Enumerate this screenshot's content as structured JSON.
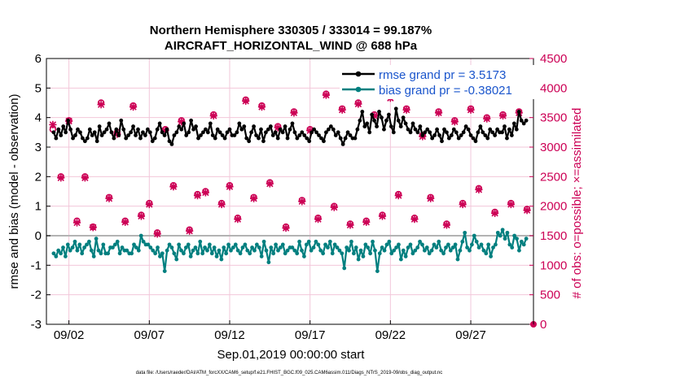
{
  "chart_data": {
    "type": "line",
    "title_line1": "Northern Hemisphere 330305 / 333014 = 99.187%",
    "title_line2": "AIRCRAFT_HORIZONTAL_WIND @ 688 hPa",
    "ylabel_left": "rmse and bias (model - observation)",
    "ylabel_right": "# of obs: o=possible; ×=assimilated",
    "xlabel": "Sep.01,2019 00:00:00 start",
    "footnote": "data file: /Users/raeder/DAI/ATM_forcXX/CAM6_setup/f.e21.FHIST_BGC.f09_025.CAM6assim.011/Diags_NTrS_2019-09/obs_diag_output.nc",
    "ylim_left": [
      -3,
      6
    ],
    "yticks_left": [
      "-3",
      "-2",
      "-1",
      "0",
      "1",
      "2",
      "3",
      "4",
      "5",
      "6"
    ],
    "ylim_right": [
      0,
      4500
    ],
    "yticks_right": [
      "0",
      "500",
      "1000",
      "1500",
      "2000",
      "2500",
      "3000",
      "3500",
      "4000",
      "4500"
    ],
    "xlim": [
      0.6,
      30.9
    ],
    "xticks": [
      {
        "day": 2,
        "label": "09/02"
      },
      {
        "day": 7,
        "label": "09/07"
      },
      {
        "day": 12,
        "label": "09/12"
      },
      {
        "day": 17,
        "label": "09/17"
      },
      {
        "day": 22,
        "label": "09/22"
      },
      {
        "day": 27,
        "label": "09/27"
      }
    ],
    "colors": {
      "rmse": "#000000",
      "bias": "#007f7f",
      "counts": "#cc0055",
      "grid": "#f2c7da",
      "zero": "#b3b3b3"
    },
    "series": [
      {
        "name": "rmse",
        "legend": "rmse grand pr = 3.5173",
        "values": [
          3.5,
          3.3,
          3.6,
          3.4,
          3.7,
          3.5,
          3.9,
          3.6,
          3.3,
          3.4,
          3.6,
          3.5,
          3.3,
          3.2,
          3.3,
          3.6,
          3.4,
          3.5,
          3.2,
          3.7,
          3.4,
          3.5,
          3.6,
          3.8,
          3.5,
          3.3,
          3.6,
          3.4,
          3.9,
          3.6,
          3.3,
          3.4,
          3.5,
          3.7,
          3.4,
          3.6,
          3.3,
          3.5,
          3.4,
          3.6,
          3.5,
          3.2,
          3.3,
          3.6,
          3.8,
          3.5,
          3.4,
          3.6,
          3.2,
          3.1,
          3.4,
          3.5,
          3.7,
          3.6,
          3.8,
          3.4,
          3.5,
          3.9,
          3.6,
          3.7,
          3.3,
          3.4,
          3.5,
          3.6,
          3.5,
          3.8,
          3.4,
          3.3,
          3.6,
          3.5,
          3.4,
          3.3,
          3.5,
          3.6,
          3.4,
          3.4,
          3.5,
          3.8,
          3.6,
          3.7,
          3.3,
          3.2,
          3.5,
          3.7,
          3.4,
          3.3,
          3.6,
          3.2,
          3.5,
          3.6,
          3.7,
          3.4,
          3.5,
          3.3,
          3.6,
          3.5,
          3.7,
          3.3,
          3.6,
          3.8,
          3.5,
          3.3,
          3.4,
          3.5,
          3.4,
          3.3,
          3.2,
          3.5,
          3.6,
          3.5,
          3.4,
          3.3,
          3.2,
          3.5,
          3.6,
          3.7,
          3.6,
          3.4,
          3.5,
          3.3,
          3.1,
          3.3,
          3.5,
          3.4,
          3.3,
          3.3,
          3.6,
          3.9,
          4.2,
          3.7,
          3.8,
          3.5,
          4.1,
          3.9,
          3.7,
          4.2,
          4.0,
          3.6,
          3.9,
          4.1,
          3.7,
          3.5,
          4.3,
          3.9,
          3.7,
          4.0,
          3.8,
          3.6,
          3.5,
          3.8,
          3.6,
          3.5,
          3.7,
          3.4,
          3.5,
          3.6,
          3.5,
          3.3,
          3.4,
          3.6,
          3.4,
          3.2,
          3.6,
          3.5,
          3.3,
          3.4,
          3.6,
          3.5,
          3.3,
          3.4,
          3.5,
          3.7,
          3.6,
          3.4,
          3.3,
          3.2,
          3.5,
          3.7,
          3.5,
          3.4,
          3.3,
          3.6,
          3.5,
          3.4,
          3.6,
          3.5,
          3.5,
          3.7,
          3.3,
          3.6,
          3.4,
          3.8,
          3.6,
          4.2,
          3.9,
          3.8,
          3.9
        ]
      },
      {
        "name": "bias",
        "legend": "bias grand pr = -0.38021",
        "values": [
          -0.6,
          -0.7,
          -0.5,
          -0.6,
          -0.4,
          -0.7,
          -0.3,
          -0.5,
          -0.4,
          -0.2,
          -0.5,
          -0.3,
          -0.6,
          -0.4,
          -0.3,
          -0.2,
          -0.5,
          -0.7,
          -0.1,
          -0.5,
          -0.6,
          -0.3,
          -0.6,
          -0.6,
          -0.4,
          -0.4,
          -0.3,
          -0.2,
          -0.6,
          -0.4,
          -0.5,
          -0.5,
          -0.6,
          -0.6,
          -0.3,
          -0.4,
          -0.5,
          0.0,
          -0.2,
          -0.3,
          -0.3,
          -0.4,
          -0.5,
          -0.6,
          -0.4,
          -0.7,
          -0.6,
          -1.2,
          -0.5,
          -0.3,
          -0.4,
          -0.6,
          -0.8,
          -0.3,
          -0.5,
          -0.6,
          -0.4,
          -0.3,
          -0.7,
          -0.5,
          -0.4,
          -0.6,
          -0.2,
          -0.6,
          -0.4,
          -0.5,
          -0.3,
          -0.6,
          -0.4,
          -0.7,
          -0.5,
          -0.8,
          -0.4,
          -0.6,
          -0.3,
          -0.5,
          -0.4,
          -0.3,
          -0.5,
          -0.6,
          -0.4,
          -0.3,
          -0.5,
          -0.6,
          -0.4,
          -0.5,
          -0.3,
          -0.4,
          -0.7,
          -0.2,
          -0.5,
          -0.9,
          -0.4,
          -0.6,
          -0.3,
          -0.5,
          -0.4,
          -0.3,
          -0.6,
          -0.5,
          -0.4,
          -0.4,
          -0.5,
          -0.6,
          -0.2,
          -0.5,
          -0.7,
          -0.3,
          -0.2,
          -0.5,
          -0.4,
          -0.2,
          -0.3,
          -0.5,
          -0.6,
          -0.3,
          -0.4,
          -0.2,
          -0.6,
          -0.3,
          -0.4,
          -0.5,
          -0.6,
          -1.1,
          -0.4,
          -0.5,
          -0.2,
          -0.6,
          -0.4,
          -0.8,
          -0.5,
          -0.7,
          -0.3,
          -0.4,
          -0.6,
          -0.2,
          -0.5,
          -1.2,
          -0.6,
          -0.4,
          -0.5,
          -0.3,
          -0.2,
          -0.6,
          -0.5,
          -0.4,
          -0.3,
          -0.8,
          -0.5,
          -0.7,
          -0.4,
          -0.3,
          -0.6,
          -0.5,
          -0.4,
          -0.2,
          -0.3,
          -0.5,
          -0.4,
          -0.6,
          -0.5,
          -0.3,
          -0.4,
          -0.2,
          -0.5,
          -0.6,
          -0.4,
          -0.3,
          -0.5,
          -0.4,
          -0.3,
          -0.8,
          -0.5,
          -0.2,
          0.1,
          -0.4,
          -0.5,
          -0.3,
          0.0,
          -0.2,
          -0.4,
          -0.3,
          -0.5,
          -0.6,
          -0.3,
          -0.7,
          -0.4,
          -0.3,
          0.1,
          0.0,
          0.2,
          -0.1,
          0.1,
          -0.3,
          -0.4,
          0.0,
          -0.1,
          -0.5,
          -0.2,
          -0.3,
          -0.1
        ]
      },
      {
        "name": "possible",
        "marker": "o",
        "x": [
          1.0,
          1.5,
          2.0,
          2.5,
          3.0,
          3.5,
          4.0,
          4.5,
          5.0,
          5.5,
          6.0,
          6.5,
          7.0,
          7.5,
          8.0,
          8.5,
          9.0,
          9.5,
          10.0,
          10.5,
          11.0,
          11.5,
          12.0,
          12.5,
          13.0,
          13.5,
          14.0,
          14.5,
          15.0,
          15.5,
          16.0,
          16.5,
          17.0,
          17.5,
          18.0,
          18.5,
          19.0,
          19.5,
          20.0,
          20.5,
          21.0,
          21.5,
          22.0,
          22.5,
          23.0,
          23.5,
          24.0,
          24.5,
          25.0,
          25.5,
          26.0,
          26.5,
          27.0,
          27.5,
          28.0,
          28.5,
          29.0,
          29.5,
          30.0,
          30.5
        ],
        "values": [
          3300,
          2500,
          3450,
          1750,
          2500,
          1650,
          3750,
          2150,
          3250,
          1750,
          3700,
          1850,
          2050,
          1550,
          3300,
          2350,
          3450,
          1600,
          2200,
          2250,
          3550,
          2050,
          2350,
          1800,
          3800,
          2150,
          3700,
          2400,
          3350,
          1650,
          3600,
          2100,
          3300,
          1800,
          3900,
          2000,
          3650,
          1700,
          3750,
          1750,
          3550,
          1850,
          3850,
          2200,
          3650,
          1800,
          3200,
          2150,
          3600,
          1700,
          3450,
          2050,
          3650,
          2300,
          3500,
          1900,
          3550,
          2050,
          3600,
          1950
        ]
      },
      {
        "name": "assimilated",
        "marker": "x",
        "x": [
          1.0,
          1.5,
          2.0,
          2.5,
          3.0,
          3.5,
          4.0,
          4.5,
          5.0,
          5.5,
          6.0,
          6.5,
          7.0,
          7.5,
          8.0,
          8.5,
          9.0,
          9.5,
          10.0,
          10.5,
          11.0,
          11.5,
          12.0,
          12.5,
          13.0,
          13.5,
          14.0,
          14.5,
          15.0,
          15.5,
          16.0,
          16.5,
          17.0,
          17.5,
          18.0,
          18.5,
          19.0,
          19.5,
          20.0,
          20.5,
          21.0,
          21.5,
          22.0,
          22.5,
          23.0,
          23.5,
          24.0,
          24.5,
          25.0,
          25.5,
          26.0,
          26.5,
          27.0,
          27.5,
          28.0,
          28.5,
          29.0,
          29.5,
          30.0,
          30.5
        ],
        "values": [
          3380,
          2480,
          3440,
          1720,
          2480,
          1640,
          3720,
          2130,
          3220,
          1730,
          3680,
          1830,
          2030,
          1530,
          3280,
          2330,
          3430,
          1580,
          2180,
          2230,
          3530,
          2030,
          2330,
          1780,
          3780,
          2130,
          3680,
          2380,
          3330,
          1630,
          3580,
          2080,
          3280,
          1780,
          3880,
          1980,
          3630,
          1680,
          3730,
          1730,
          3530,
          1830,
          3830,
          2180,
          3630,
          1780,
          3180,
          2130,
          3580,
          1680,
          3430,
          2030,
          3630,
          2280,
          3480,
          1880,
          3530,
          2030,
          3580,
          1930
        ]
      }
    ]
  }
}
